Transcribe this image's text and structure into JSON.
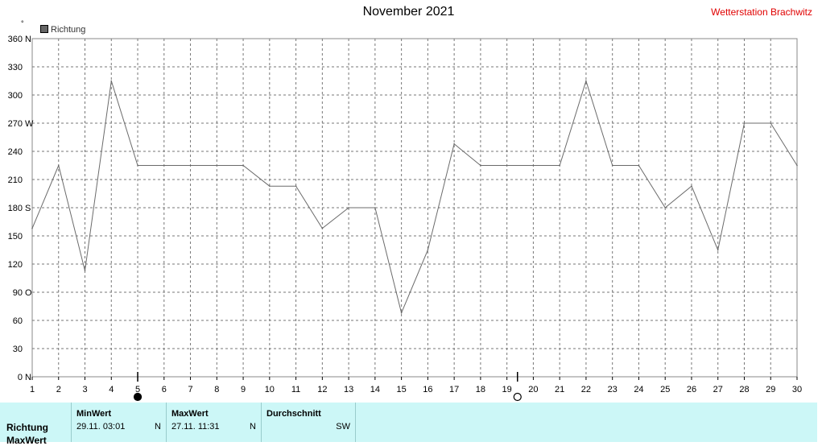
{
  "header": {
    "title": "November 2021",
    "station": "Wetterstation Brachwitz",
    "unit_symbol": "°"
  },
  "legend": {
    "label": "Richtung"
  },
  "chart_data": {
    "type": "line",
    "title": "November 2021",
    "series": [
      {
        "name": "Richtung",
        "color": "#6b6b6b",
        "x": [
          1,
          2,
          3,
          4,
          5,
          6,
          7,
          8,
          9,
          10,
          11,
          12,
          13,
          14,
          15,
          16,
          17,
          18,
          19,
          20,
          21,
          22,
          23,
          24,
          25,
          26,
          27,
          28,
          29,
          30
        ],
        "values": [
          158,
          225,
          113,
          315,
          225,
          225,
          225,
          225,
          225,
          203,
          203,
          158,
          180,
          180,
          68,
          135,
          248,
          225,
          225,
          225,
          225,
          315,
          225,
          225,
          180,
          203,
          135,
          270,
          270,
          225
        ]
      }
    ],
    "xlim": [
      1,
      30
    ],
    "ylim": [
      0,
      360
    ],
    "y_ticks": [
      0,
      30,
      60,
      90,
      120,
      150,
      180,
      210,
      240,
      270,
      300,
      330,
      360
    ],
    "y_tick_labels": [
      "0",
      "30",
      "60",
      "90",
      "120",
      "150",
      "180",
      "210",
      "240",
      "270",
      "300",
      "330",
      "360"
    ],
    "y_direction_labels": [
      {
        "value": 0,
        "label": "N"
      },
      {
        "value": 90,
        "label": "O"
      },
      {
        "value": 180,
        "label": "S"
      },
      {
        "value": 270,
        "label": "W"
      },
      {
        "value": 360,
        "label": "N"
      }
    ],
    "x_ticks": [
      "1",
      "2",
      "3",
      "4",
      "5",
      "6",
      "7",
      "8",
      "9",
      "10",
      "11",
      "12",
      "13",
      "14",
      "15",
      "16",
      "17",
      "18",
      "19",
      "20",
      "21",
      "22",
      "23",
      "24",
      "25",
      "26",
      "27",
      "28",
      "29",
      "30"
    ],
    "grid": true,
    "moon_phases": [
      {
        "day": 5,
        "phase": "new"
      },
      {
        "day": 19.4,
        "phase": "full"
      }
    ]
  },
  "stats": {
    "row_label": "Richtung",
    "row_label_2": "MaxWert",
    "min": {
      "header": "MinWert",
      "value": "29.11.  03:01",
      "dir": "N"
    },
    "max": {
      "header": "MaxWert",
      "value": "27.11.  11:31",
      "dir": "N"
    },
    "avg": {
      "header": "Durchschnitt",
      "dir": "SW"
    }
  }
}
